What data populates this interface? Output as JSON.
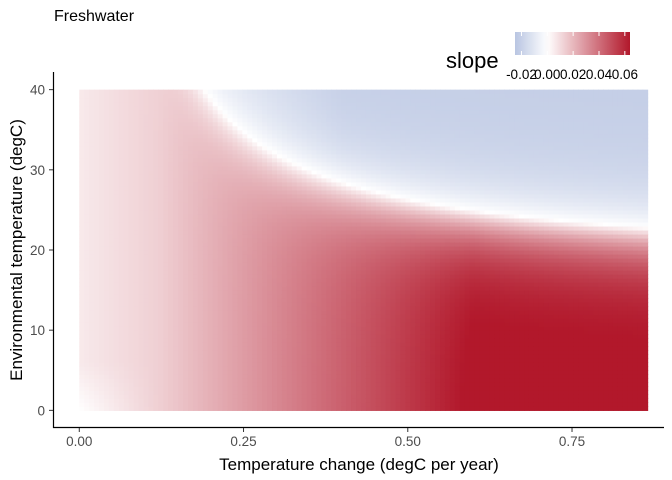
{
  "chart_data": {
    "type": "heatmap",
    "title": "Freshwater",
    "xlabel": "Temperature change (degC per year)",
    "ylabel": "Environmental temperature (degC)",
    "xlim": [
      -0.04,
      0.89
    ],
    "ylim": [
      -2.2,
      42.2
    ],
    "x_range": [
      0.0,
      0.865
    ],
    "y_range": [
      0.0,
      40.0
    ],
    "x_ticks": [
      0.0,
      0.25,
      0.5,
      0.75
    ],
    "x_tick_labels": [
      "0.00",
      "0.25",
      "0.50",
      "0.75"
    ],
    "y_ticks": [
      0,
      10,
      20,
      30,
      40
    ],
    "y_tick_labels": [
      "0",
      "10",
      "20",
      "30",
      "40"
    ],
    "grid": false,
    "color_scale": {
      "name": "slope",
      "limits": [
        -0.025,
        0.064
      ],
      "breaks": [
        -0.02,
        0.0,
        0.02,
        0.04,
        0.06
      ],
      "break_labels": [
        "-0.02",
        "0.00",
        "0.02",
        "0.04",
        "0.06"
      ],
      "low_color": "#b9c5e2",
      "mid_color": "#ffffff",
      "high_color": "#b2182b",
      "midpoint": 0.0
    },
    "legend": {
      "title": "slope",
      "position": "top-right"
    },
    "surface": {
      "description_points": [
        {
          "x": 0.0,
          "y": 40,
          "slope": 0.008
        },
        {
          "x": 0.1,
          "y": 40,
          "slope": 0.0
        },
        {
          "x": 0.5,
          "y": 40,
          "slope": -0.02
        },
        {
          "x": 0.865,
          "y": 40,
          "slope": -0.021
        },
        {
          "x": 0.5,
          "y": 20,
          "slope": 0.0
        },
        {
          "x": 0.0,
          "y": 0,
          "slope": 0.0
        },
        {
          "x": 0.5,
          "y": 5,
          "slope": 0.06
        },
        {
          "x": 0.865,
          "y": 0,
          "slope": 0.055
        }
      ]
    }
  }
}
